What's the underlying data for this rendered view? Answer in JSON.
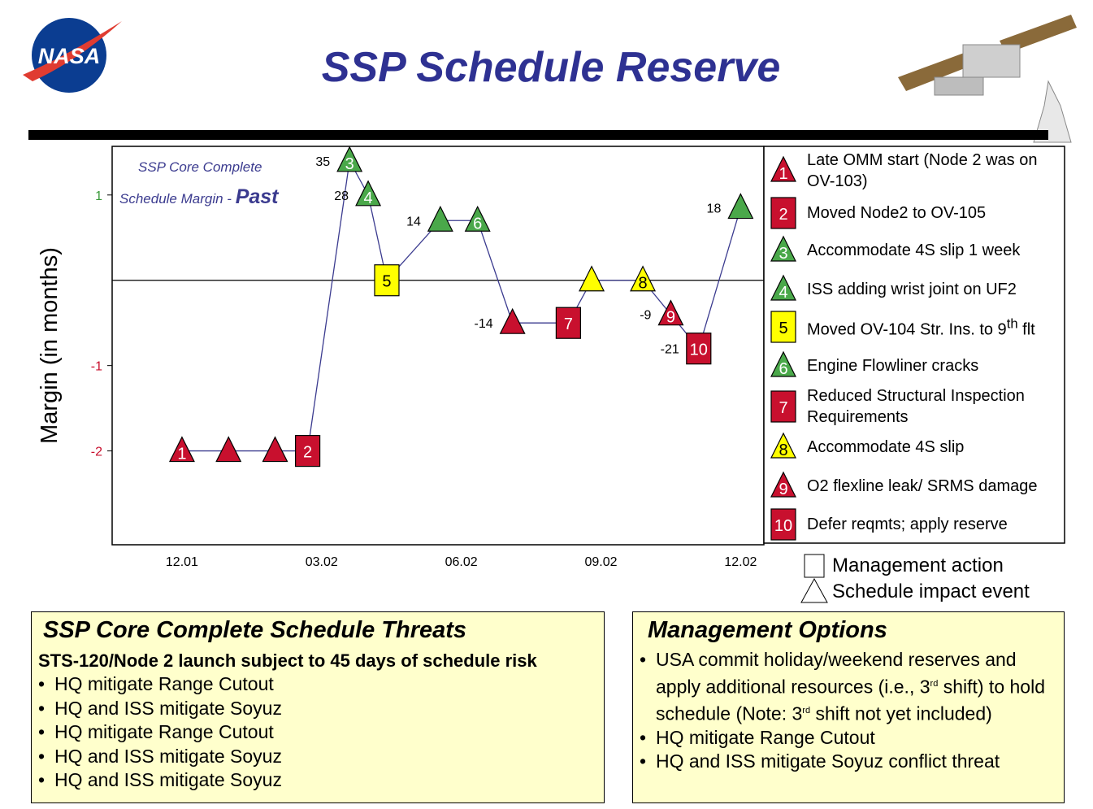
{
  "header": {
    "title": "SSP Schedule Reserve",
    "logo_text": "NASA"
  },
  "chart_data": {
    "type": "line",
    "y_label": "Margin (in months)",
    "note": "SSP Core Complete",
    "margin_label": "Schedule Margin - ",
    "margin_emphasis": "Past",
    "x": [
      0,
      1,
      2,
      2.7,
      3.6,
      4.0,
      4.4,
      5.55,
      6.35,
      7.1,
      8.3,
      8.8,
      9.9,
      10.5,
      11.1,
      12.0
    ],
    "xlim": [
      -1.5,
      12.5
    ],
    "xticks": [
      {
        "value": 0,
        "label": "12.01"
      },
      {
        "value": 3,
        "label": "03.02"
      },
      {
        "value": 6,
        "label": "06.02"
      },
      {
        "value": 9,
        "label": "09.02"
      },
      {
        "value": 12,
        "label": "12.02"
      }
    ],
    "ylim": [
      -3.1,
      1.57
    ],
    "yticks": [
      -2,
      -1,
      1
    ],
    "ytick_colors": [
      "#c8102e",
      "#c8102e",
      "#3a9a3a"
    ],
    "hline": 0,
    "line_color": "#3b3b8f",
    "series": [
      {
        "values": [
          -2,
          -2,
          -2,
          -2,
          1.4,
          1.0,
          0,
          0.7,
          0.7,
          -0.5,
          -0.5,
          0,
          0,
          -0.4,
          -0.8,
          0.85
        ],
        "colors": [
          "#c8102e",
          "#c8102e",
          "#c8102e",
          "#c8102e",
          "#4aa84a",
          "#4aa84a",
          "#ffff00",
          "#4aa84a",
          "#4aa84a",
          "#c8102e",
          "#c8102e",
          "#ffff00",
          "#ffff00",
          "#c8102e",
          "#c8102e",
          "#4aa84a"
        ],
        "shapes": [
          "triangle",
          "triangle",
          "triangle",
          "square",
          "triangle",
          "triangle",
          "square",
          "triangle",
          "triangle",
          "triangle",
          "square",
          "triangle",
          "triangle",
          "triangle",
          "square",
          "triangle"
        ],
        "labels": [
          "1",
          null,
          null,
          "2",
          "3",
          "4",
          "5",
          null,
          "6",
          null,
          "7",
          null,
          "8",
          "9",
          "10",
          null
        ],
        "point_labels": [
          null,
          null,
          null,
          null,
          "35",
          "28",
          null,
          "14",
          null,
          "-14",
          null,
          null,
          null,
          "-9",
          "-21",
          "18"
        ]
      }
    ]
  },
  "legend": {
    "items": [
      {
        "number": "1",
        "shape": "triangle",
        "color": "#c8102e",
        "text": "Late OMM start (Node 2 was on OV-103)"
      },
      {
        "number": "2",
        "shape": "square",
        "color": "#c8102e",
        "text": "Moved Node2 to OV-105"
      },
      {
        "number": "3",
        "shape": "triangle",
        "color": "#4aa84a",
        "text": "Accommodate 4S slip 1 week"
      },
      {
        "number": "4",
        "shape": "triangle",
        "color": "#4aa84a",
        "text": "ISS adding wrist joint on UF2"
      },
      {
        "number": "5",
        "shape": "square",
        "color": "#ffff00",
        "text": [
          "Moved OV-104 Str. Ins. to 9",
          "th",
          " flt"
        ]
      },
      {
        "number": "6",
        "shape": "triangle",
        "color": "#4aa84a",
        "text": "Engine Flowliner cracks"
      },
      {
        "number": "7",
        "shape": "square",
        "color": "#c8102e",
        "text": "Reduced Structural Inspection Requirements"
      },
      {
        "number": "8",
        "shape": "triangle",
        "color": "#ffff00",
        "text": "Accommodate 4S slip"
      },
      {
        "number": "9",
        "shape": "triangle",
        "color": "#c8102e",
        "text": "O2 flexline leak/ SRMS damage"
      },
      {
        "number": "10",
        "shape": "square",
        "color": "#c8102e",
        "text": "Defer reqmts; apply reserve"
      }
    ],
    "key": [
      {
        "shape": "square",
        "text": "Management action"
      },
      {
        "shape": "triangle",
        "text": "Schedule impact event"
      }
    ]
  },
  "threats": {
    "title": "SSP Core Complete Schedule Threats",
    "lead": "STS-120/Node 2 launch subject to 45 days of schedule risk",
    "bullets": [
      "HQ mitigate Range Cutout",
      "HQ and ISS mitigate Soyuz",
      "HQ mitigate Range Cutout",
      "HQ and ISS mitigate Soyuz",
      "HQ and ISS mitigate Soyuz"
    ]
  },
  "options": {
    "title": "Management Options",
    "bullets": [
      [
        "USA commit holiday/weekend reserves and apply additional resources (i.e., 3",
        "rd",
        " shift) to hold schedule (Note: 3",
        "rd",
        " shift not yet included)"
      ],
      "HQ mitigate Range Cutout",
      "HQ and ISS mitigate Soyuz conflict threat"
    ]
  }
}
